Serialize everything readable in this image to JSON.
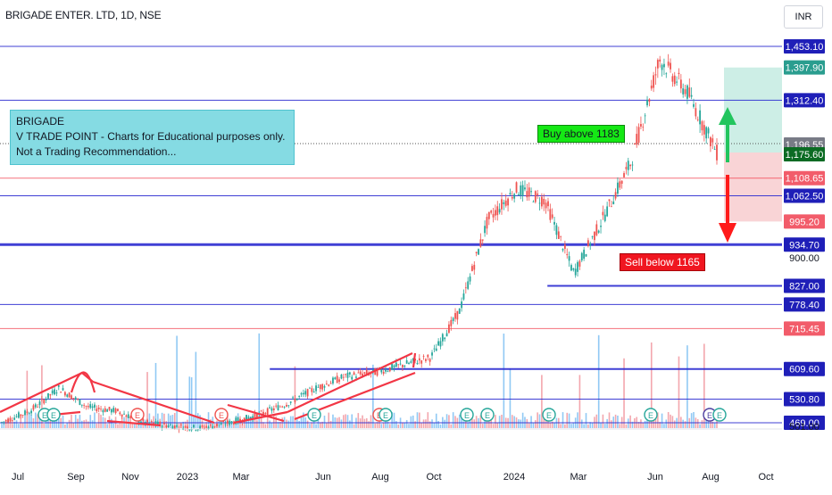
{
  "header": {
    "symbol_title": "BRIGADE ENTER. LTD, 1D, NSE",
    "currency": "INR"
  },
  "annotations": {
    "info_lines": [
      "BRIGADE",
      "V TRADE POINT - Charts for Educational purposes only.",
      "Not a Trading Recommendation..."
    ],
    "buy_text": "Buy above 1183",
    "sell_text": "Sell below 1165"
  },
  "colors": {
    "up_candle": "#26a69a",
    "down_candle": "#ef5350",
    "level_line": "#2b2bd1",
    "red_line": "#f23645",
    "target_zone": "#cdeee6",
    "stop_zone": "#f9d4d6",
    "arrow_up": "#22c55e",
    "arrow_down": "#ff1a1a",
    "volume_up": "#90c9f4",
    "volume_down": "#f3a6ad"
  },
  "chart_data": {
    "type": "candlestick",
    "title": "BRIGADE ENTER. LTD, 1D, NSE",
    "ylim": [
      400,
      1480
    ],
    "x_ticks": [
      "Jul",
      "Sep",
      "Nov",
      "2023",
      "Mar",
      "Jun",
      "Aug",
      "Oct",
      "2024",
      "Mar",
      "Jun",
      "Aug",
      "Oct"
    ],
    "price_scale_ticks": [
      900.0,
      501.0
    ],
    "level_labels": [
      {
        "value": 1453.1,
        "text": "1,453.10",
        "kind": "level"
      },
      {
        "value": 1397.9,
        "text": "1,397.90",
        "kind": "target"
      },
      {
        "value": 1312.4,
        "text": "1,312.40",
        "kind": "level"
      },
      {
        "value": 1196.55,
        "text": "1,196.55",
        "kind": "reference"
      },
      {
        "value": 1175.6,
        "text": "1,175.60",
        "kind": "last"
      },
      {
        "value": 1108.65,
        "text": "1,108.65",
        "kind": "red"
      },
      {
        "value": 1062.5,
        "text": "1,062.50",
        "kind": "level"
      },
      {
        "value": 995.2,
        "text": "995.20",
        "kind": "stop"
      },
      {
        "value": 934.7,
        "text": "934.70",
        "kind": "level"
      },
      {
        "value": 827.0,
        "text": "827.00",
        "kind": "level"
      },
      {
        "value": 778.4,
        "text": "778.40",
        "kind": "level"
      },
      {
        "value": 715.45,
        "text": "715.45",
        "kind": "red"
      },
      {
        "value": 609.6,
        "text": "609.60",
        "kind": "level"
      },
      {
        "value": 530.8,
        "text": "530.80",
        "kind": "level"
      },
      {
        "value": 469.0,
        "text": "469.00",
        "kind": "level"
      }
    ],
    "price_path": [
      [
        "Jul",
        470
      ],
      [
        "Aug",
        500
      ],
      [
        "Sep",
        560
      ],
      [
        "Oct",
        510
      ],
      [
        "Nov",
        500
      ],
      [
        "Dec",
        470
      ],
      [
        "2023",
        460
      ],
      [
        "Feb",
        455
      ],
      [
        "Mar",
        470
      ],
      [
        "Apr",
        490
      ],
      [
        "May",
        520
      ],
      [
        "Jun",
        560
      ],
      [
        "Jul",
        590
      ],
      [
        "Aug",
        600
      ],
      [
        "Sep",
        620
      ],
      [
        "Oct",
        640
      ],
      [
        "Nov",
        760
      ],
      [
        "Dec",
        1000
      ],
      [
        "2024",
        1080
      ],
      [
        "Feb",
        1050
      ],
      [
        "Mar",
        860
      ],
      [
        "Apr",
        1000
      ],
      [
        "May",
        1150
      ],
      [
        "Jun",
        1420
      ],
      [
        "Jul",
        1330
      ],
      [
        "Aug",
        1175
      ]
    ],
    "earnings_markers": [
      "Jul",
      "Aug",
      "Nov",
      "Feb",
      "Mar",
      "Jun",
      "Aug",
      "Oct",
      "Nov",
      "2024",
      "Feb",
      "Jun",
      "Aug"
    ],
    "position": {
      "entry": 1175.6,
      "target": 1397.9,
      "stop": 995.2
    }
  }
}
